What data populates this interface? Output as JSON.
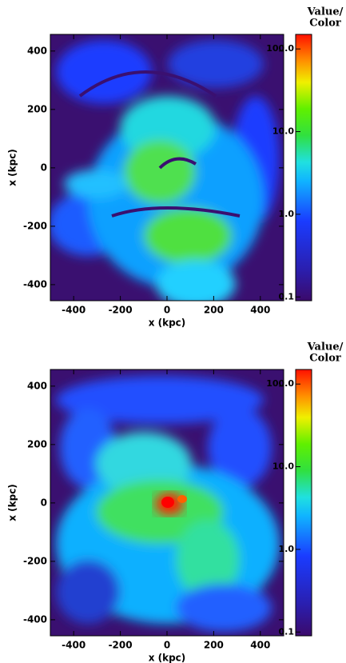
{
  "chart_data": [
    {
      "type": "heatmap",
      "xlabel": "x (kpc)",
      "ylabel": "x (kpc)",
      "xlim": [
        -500,
        500
      ],
      "xticks": [
        -400,
        -200,
        0,
        200,
        400
      ],
      "ylim": [
        -455,
        457
      ],
      "yticks": [
        -400,
        -200,
        0,
        200,
        400
      ],
      "colorbar_title": [
        "Value/",
        "Color"
      ],
      "clim": [
        0.09,
        150
      ],
      "clog": true,
      "cticks": [
        0.1,
        {
          "value": 1,
          "label": "1.0"
        },
        {
          "value": 10,
          "label": "10.0"
        },
        {
          "value": 100,
          "label": "100.0"
        }
      ]
    },
    {
      "type": "heatmap",
      "xlabel": "x (kpc)",
      "ylabel": "x (kpc)",
      "xlim": [
        -500,
        500
      ],
      "xticks": [
        -400,
        -200,
        0,
        200,
        400
      ],
      "ylim": [
        -455,
        457
      ],
      "yticks": [
        -400,
        -200,
        0,
        200,
        400
      ],
      "colorbar_title": [
        "Value/",
        "Color"
      ],
      "clim": [
        0.09,
        150
      ],
      "clog": true,
      "cticks": [
        0.1,
        {
          "value": 1,
          "label": "1.0"
        },
        {
          "value": 10,
          "label": "10.0"
        },
        {
          "value": 100,
          "label": "100.0"
        }
      ]
    }
  ]
}
